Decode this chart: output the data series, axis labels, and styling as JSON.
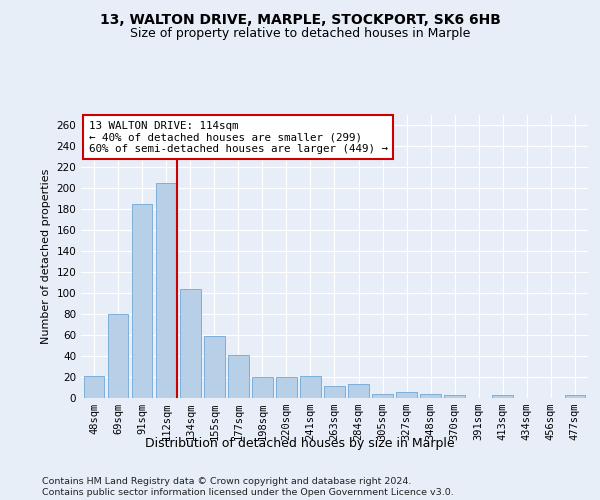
{
  "title1": "13, WALTON DRIVE, MARPLE, STOCKPORT, SK6 6HB",
  "title2": "Size of property relative to detached houses in Marple",
  "xlabel": "Distribution of detached houses by size in Marple",
  "ylabel": "Number of detached properties",
  "bar_labels": [
    "48sqm",
    "69sqm",
    "91sqm",
    "112sqm",
    "134sqm",
    "155sqm",
    "177sqm",
    "198sqm",
    "220sqm",
    "241sqm",
    "263sqm",
    "284sqm",
    "305sqm",
    "327sqm",
    "348sqm",
    "370sqm",
    "391sqm",
    "413sqm",
    "434sqm",
    "456sqm",
    "477sqm"
  ],
  "bar_values": [
    21,
    80,
    185,
    205,
    104,
    59,
    41,
    20,
    20,
    21,
    11,
    13,
    3,
    5,
    3,
    2,
    0,
    2,
    0,
    0,
    2
  ],
  "bar_color": "#b8cfe8",
  "bar_edgecolor": "#6fa8d5",
  "vline_x_idx": 3,
  "vline_color": "#cc0000",
  "annotation_text": "13 WALTON DRIVE: 114sqm\n← 40% of detached houses are smaller (299)\n60% of semi-detached houses are larger (449) →",
  "annotation_box_color": "#ffffff",
  "annotation_box_edgecolor": "#cc0000",
  "ylim": [
    0,
    270
  ],
  "yticks": [
    0,
    20,
    40,
    60,
    80,
    100,
    120,
    140,
    160,
    180,
    200,
    220,
    240,
    260
  ],
  "footer_text": "Contains HM Land Registry data © Crown copyright and database right 2024.\nContains public sector information licensed under the Open Government Licence v3.0.",
  "bg_color": "#e8eef8",
  "plot_bg_color": "#e8eef8",
  "grid_color": "#ffffff",
  "title1_fontsize": 10,
  "title2_fontsize": 9,
  "xlabel_fontsize": 9,
  "ylabel_fontsize": 8,
  "tick_fontsize": 7.5,
  "footer_fontsize": 6.8,
  "annot_fontsize": 7.8
}
